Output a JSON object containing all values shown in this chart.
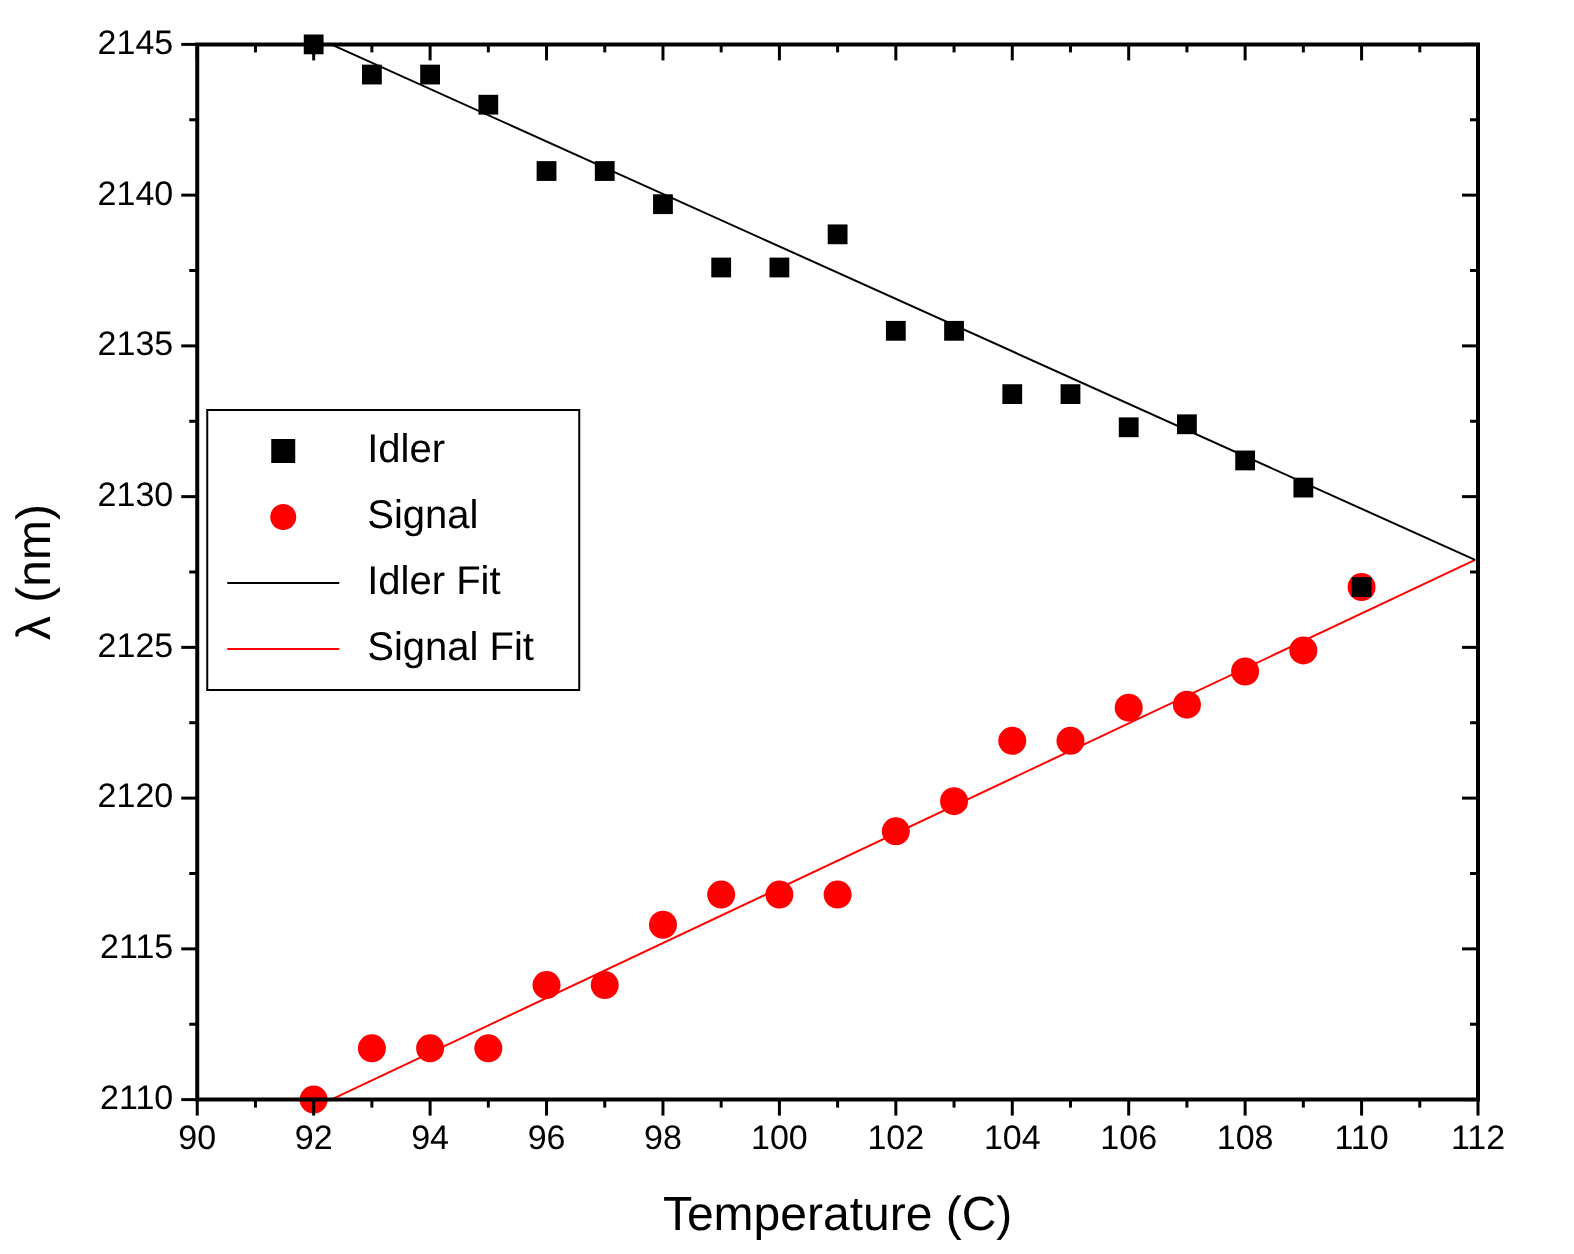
{
  "chart_data": {
    "type": "scatter",
    "xlabel": "Temperature (C)",
    "ylabel": "λ (nm)",
    "xlim": [
      90,
      112
    ],
    "xticks": [
      90,
      92,
      94,
      96,
      98,
      100,
      102,
      104,
      106,
      108,
      110,
      112
    ],
    "ylim": [
      2110,
      2145
    ],
    "yticks": [
      2110,
      2115,
      2120,
      2125,
      2130,
      2135,
      2140,
      2145
    ],
    "grid": false,
    "legend": "left",
    "series": [
      {
        "name": "Idler",
        "marker": "square",
        "color": "#000000",
        "x": [
          92,
          93,
          94,
          95,
          96,
          97,
          98,
          99,
          100,
          101,
          102,
          103,
          104,
          105,
          106,
          107,
          108,
          109,
          110
        ],
        "values": [
          2145,
          2144,
          2144,
          2143,
          2140.8,
          2140.8,
          2139.7,
          2137.6,
          2137.6,
          2138.7,
          2135.5,
          2135.5,
          2133.4,
          2133.4,
          2132.3,
          2132.4,
          2131.2,
          2130.3,
          2127
        ]
      },
      {
        "name": "Signal",
        "marker": "circle",
        "color": "#ff0000",
        "x": [
          92,
          93,
          94,
          95,
          96,
          97,
          98,
          99,
          100,
          101,
          102,
          103,
          104,
          105,
          106,
          107,
          108,
          109,
          110
        ],
        "values": [
          2110,
          2111.7,
          2111.7,
          2111.7,
          2113.8,
          2113.8,
          2115.8,
          2116.8,
          2116.8,
          2116.8,
          2118.9,
          2119.9,
          2121.9,
          2121.9,
          2123,
          2123.1,
          2124.2,
          2124.9,
          2127
        ]
      },
      {
        "name": "Idler Fit",
        "type": "line",
        "marker": "none",
        "color": "#000000",
        "x": [
          92.3,
          111.95
        ],
        "values": [
          2145,
          2127.9
        ]
      },
      {
        "name": "Signal Fit",
        "type": "line",
        "marker": "none",
        "color": "#ff0000",
        "x": [
          92.3,
          111.95
        ],
        "values": [
          2110,
          2127.9
        ]
      }
    ]
  }
}
